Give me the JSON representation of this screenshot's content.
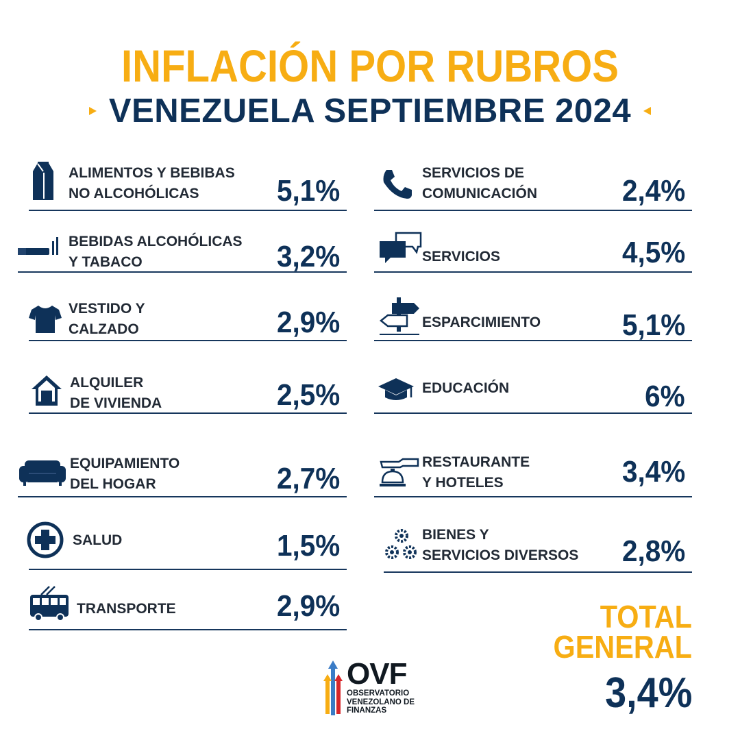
{
  "header": {
    "title": "INFLACIÓN POR RUBROS",
    "subtitle": "VENEZUELA SEPTIEMBRE 2024",
    "accent_color": "#f7ad13",
    "navy_color": "#0e3158"
  },
  "left_items": [
    {
      "icon": "milk-carton-icon",
      "line1": "ALIMENTOS Y BEBIBAS",
      "line2": "NO ALCOHÓLICAS",
      "value": "5,1%"
    },
    {
      "icon": "cigarette-icon",
      "line1": "BEBIDAS ALCOHÓLICAS",
      "line2": "Y TABACO",
      "value": "3,2%"
    },
    {
      "icon": "tshirt-icon",
      "line1": "VESTIDO Y",
      "line2": "CALZADO",
      "value": "2,9%"
    },
    {
      "icon": "house-icon",
      "line1": "ALQUILER",
      "line2": "DE VIVIENDA",
      "value": "2,5%"
    },
    {
      "icon": "sofa-icon",
      "line1": "EQUIPAMIENTO",
      "line2": "DEL HOGAR",
      "value": "2,7%"
    },
    {
      "icon": "medical-cross-icon",
      "line1": "SALUD",
      "line2": "",
      "value": "1,5%"
    },
    {
      "icon": "trolleybus-icon",
      "line1": "TRANSPORTE",
      "line2": "",
      "value": "2,9%"
    }
  ],
  "right_items": [
    {
      "icon": "phone-icon",
      "line1": "SERVICIOS DE",
      "line2": "COMUNICACIÓN",
      "value": "2,4%"
    },
    {
      "icon": "chat-bubbles-icon",
      "line1": "SERVICIOS",
      "line2": "",
      "value": "4,5%"
    },
    {
      "icon": "signpost-icon",
      "line1": "ESPARCIMIENTO",
      "line2": "",
      "value": "5,1%"
    },
    {
      "icon": "graduation-cap-icon",
      "line1": "EDUCACIÓN",
      "line2": "",
      "value": "6%"
    },
    {
      "icon": "service-bell-icon",
      "line1": "RESTAURANTE",
      "line2": "Y HOTELES",
      "value": "3,4%"
    },
    {
      "icon": "gears-icon",
      "line1": "BIENES Y",
      "line2": "SERVICIOS DIVERSOS",
      "value": "2,8%"
    }
  ],
  "total": {
    "line1": "TOTAL",
    "line2": "GENERAL",
    "value": "3,4%"
  },
  "logo": {
    "abbr": "OVF",
    "line1": "OBSERVATORIO",
    "line2": "VENEZOLANO DE",
    "line3": "FINANZAS"
  }
}
